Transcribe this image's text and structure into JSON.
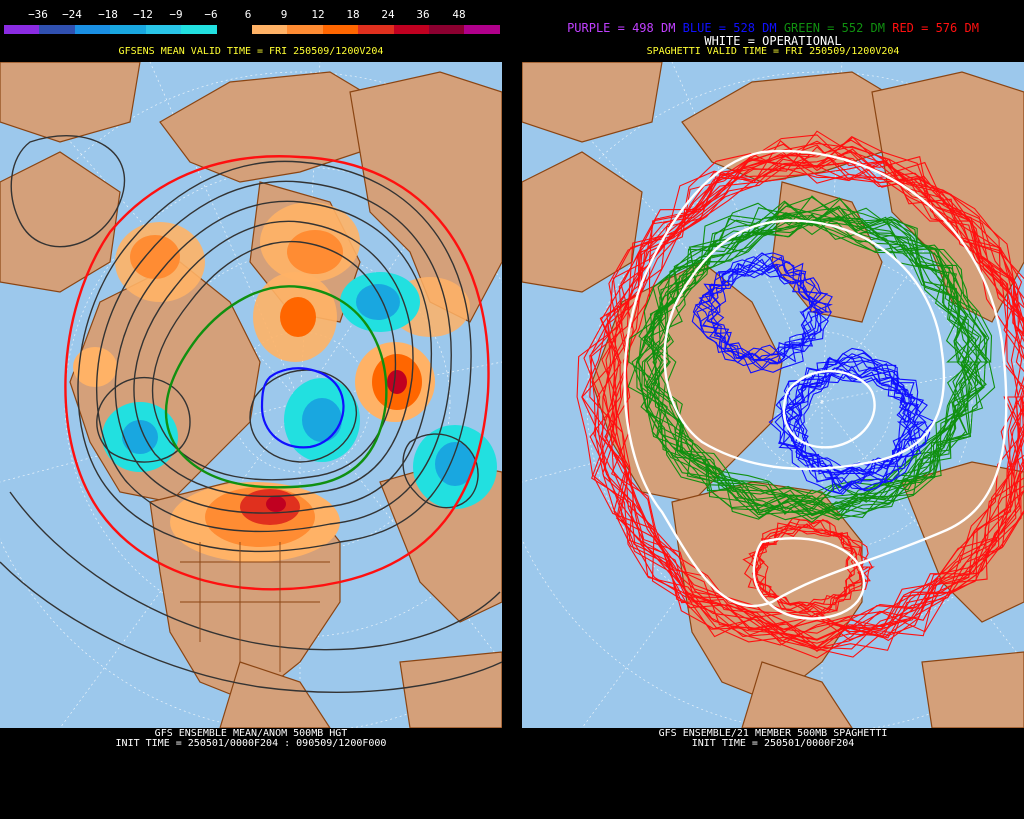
{
  "left": {
    "colorbar_labels": [
      "−36",
      "−24",
      "−18",
      "−12",
      "−9",
      "−6",
      "6",
      "9",
      "12",
      "18",
      "24",
      "36",
      "48"
    ],
    "colorbar_colors": [
      "#8a2be2",
      "#3050b0",
      "#1a8fe3",
      "#19a7e0",
      "#29c5e8",
      "#22e0e0",
      "#000000",
      "#ffb266",
      "#ff8c33",
      "#ff6600",
      "#e0301e",
      "#c00020",
      "#8b0030",
      "#b0008b"
    ],
    "valid_time": "GFSENS MEAN VALID TIME = FRI 250509/1200V204",
    "footer_line1": "GFS ENSEMBLE MEAN/ANOM 500MB HGT",
    "footer_line2": "INIT TIME = 250501/0000F204 : 090509/1200F000"
  },
  "right": {
    "legend": {
      "purple": "PURPLE = 498 DM",
      "blue": "BLUE = 528 DM",
      "green": "GREEN = 552 DM",
      "red": "RED = 576 DM",
      "white": "WHITE = OPERATIONAL"
    },
    "valid_time": "SPAGHETTI VALID TIME = FRI 250509/1200V204",
    "footer_line1": "GFS ENSEMBLE/21 MEMBER 500MB SPAGHETTI",
    "footer_line2": "INIT TIME = 250501/0000F204"
  },
  "colors": {
    "ocean": "#9cc8ec",
    "land": "#d4a07a",
    "border": "#8b4513",
    "purple": "#c040ff",
    "blue": "#1010ff",
    "green": "#109010",
    "red": "#ff1010",
    "white": "#ffffff",
    "title_yellow": "#ffff33"
  }
}
